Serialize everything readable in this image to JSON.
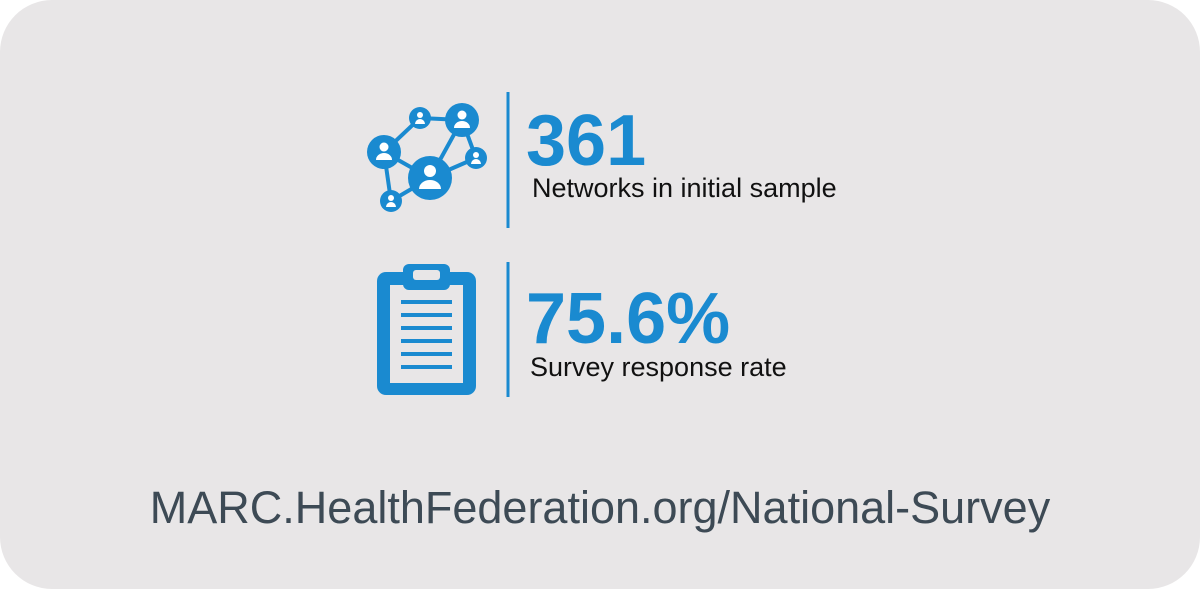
{
  "stats": [
    {
      "value": "361",
      "label": "Networks in initial sample"
    },
    {
      "value": "75.6%",
      "label": "Survey response rate"
    }
  ],
  "footer": {
    "url": "MARC.HealthFederation.org/National-Survey"
  }
}
